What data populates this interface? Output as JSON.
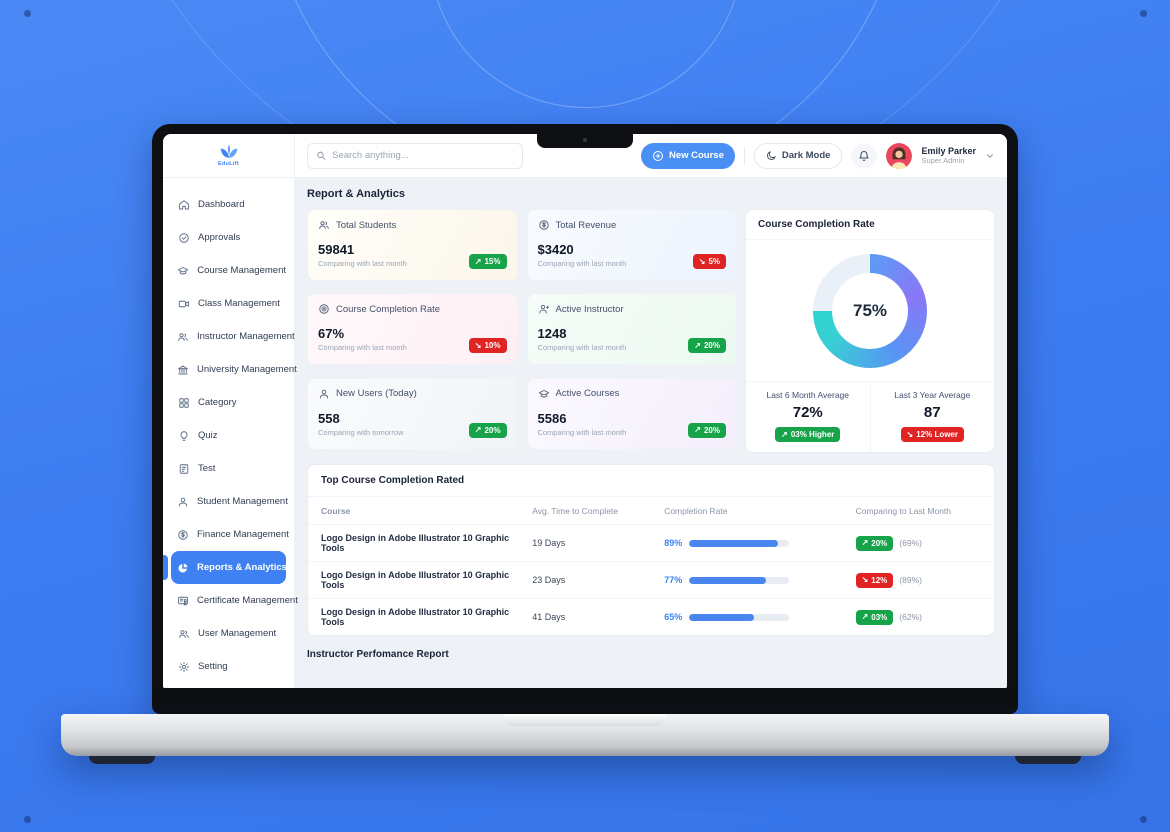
{
  "brand": {
    "name": "EduLift"
  },
  "topbar": {
    "search_placeholder": "Search anything...",
    "new_course": "New Course",
    "dark_mode": "Dark Mode",
    "user": {
      "name": "Emily Parker",
      "role": "Super Admin"
    }
  },
  "sidebar": {
    "items": [
      {
        "label": "Dashboard",
        "icon": "home-icon"
      },
      {
        "label": "Approvals",
        "icon": "check-circle-icon"
      },
      {
        "label": "Course Management",
        "icon": "graduation-cap-icon"
      },
      {
        "label": "Class Management",
        "icon": "video-icon"
      },
      {
        "label": "Instructor Management",
        "icon": "users-icon"
      },
      {
        "label": "University Management",
        "icon": "bank-icon"
      },
      {
        "label": "Category",
        "icon": "grid-icon"
      },
      {
        "label": "Quiz",
        "icon": "bulb-icon"
      },
      {
        "label": "Test",
        "icon": "file-edit-icon"
      },
      {
        "label": "Student Management",
        "icon": "person-icon"
      },
      {
        "label": "Finance Management",
        "icon": "dollar-circle-icon"
      },
      {
        "label": "Reports & Analytics",
        "icon": "pie-chart-icon",
        "active": true
      },
      {
        "label": "Certificate Management",
        "icon": "certificate-icon"
      },
      {
        "label": "User Management",
        "icon": "users-icon"
      },
      {
        "label": "Setting",
        "icon": "gear-icon"
      }
    ]
  },
  "page": {
    "title": "Report & Analytics",
    "section2_title": "Instructor Perfomance Report"
  },
  "stats_cards": [
    {
      "title": "Total Students",
      "value": "59841",
      "note": "Comparing with last month",
      "change": "15%",
      "direction": "up"
    },
    {
      "title": "Total Revenue",
      "value": "$3420",
      "note": "Comparing with last month",
      "change": "5%",
      "direction": "down"
    },
    {
      "title": "Course Completion Rate",
      "value": "67%",
      "note": "Comparing with last month",
      "change": "10%",
      "direction": "down"
    },
    {
      "title": "Active Instructor",
      "value": "1248",
      "note": "Comparing with last month",
      "change": "20%",
      "direction": "up"
    },
    {
      "title": "New Users (Today)",
      "value": "558",
      "note": "Comparing with tomorrow",
      "change": "20%",
      "direction": "up"
    },
    {
      "title": "Active Courses",
      "value": "5586",
      "note": "Comparing with last month",
      "change": "20%",
      "direction": "up"
    }
  ],
  "completion_panel": {
    "title": "Course Completion Rate",
    "percent": "75%",
    "averages": [
      {
        "label": "Last 6 Month Average",
        "value": "72%",
        "badge": "03% Higher",
        "direction": "up"
      },
      {
        "label": "Last 3 Year Average",
        "value": "87",
        "badge": "12% Lower",
        "direction": "down"
      }
    ]
  },
  "table": {
    "title": "Top Course Completion Rated",
    "columns": [
      "Course",
      "Avg. Time to Complete",
      "Completion Rate",
      "Comparing to Last Month"
    ],
    "rows": [
      {
        "course": "Logo Design in Adobe Illustrator 10 Graphic Tools",
        "time": "19 Days",
        "rate": "89%",
        "rate_value": 89,
        "change": "20%",
        "direction": "up",
        "prev": "(69%)"
      },
      {
        "course": "Logo Design in Adobe Illustrator 10 Graphic Tools",
        "time": "23 Days",
        "rate": "77%",
        "rate_value": 77,
        "change": "12%",
        "direction": "down",
        "prev": "(89%)"
      },
      {
        "course": "Logo Design in Adobe Illustrator 10 Graphic Tools",
        "time": "41 Days",
        "rate": "65%",
        "rate_value": 65,
        "change": "03%",
        "direction": "up",
        "prev": "(62%)"
      }
    ]
  },
  "chart_data": {
    "type": "pie",
    "title": "Course Completion Rate",
    "labels": [
      "Completed",
      "Remaining"
    ],
    "values": [
      75,
      25
    ],
    "center_label": "75%",
    "colors": [
      "#5a9cf5",
      "#e9f0f8"
    ]
  },
  "colors": {
    "accent": "#3b82f6",
    "green": "#17a34a",
    "red": "#e02424",
    "background": "#3c7bf0",
    "donut_gradient": [
      "#5a9cf5",
      "#8a77f7",
      "#5795f3",
      "#2ed3ce"
    ]
  }
}
